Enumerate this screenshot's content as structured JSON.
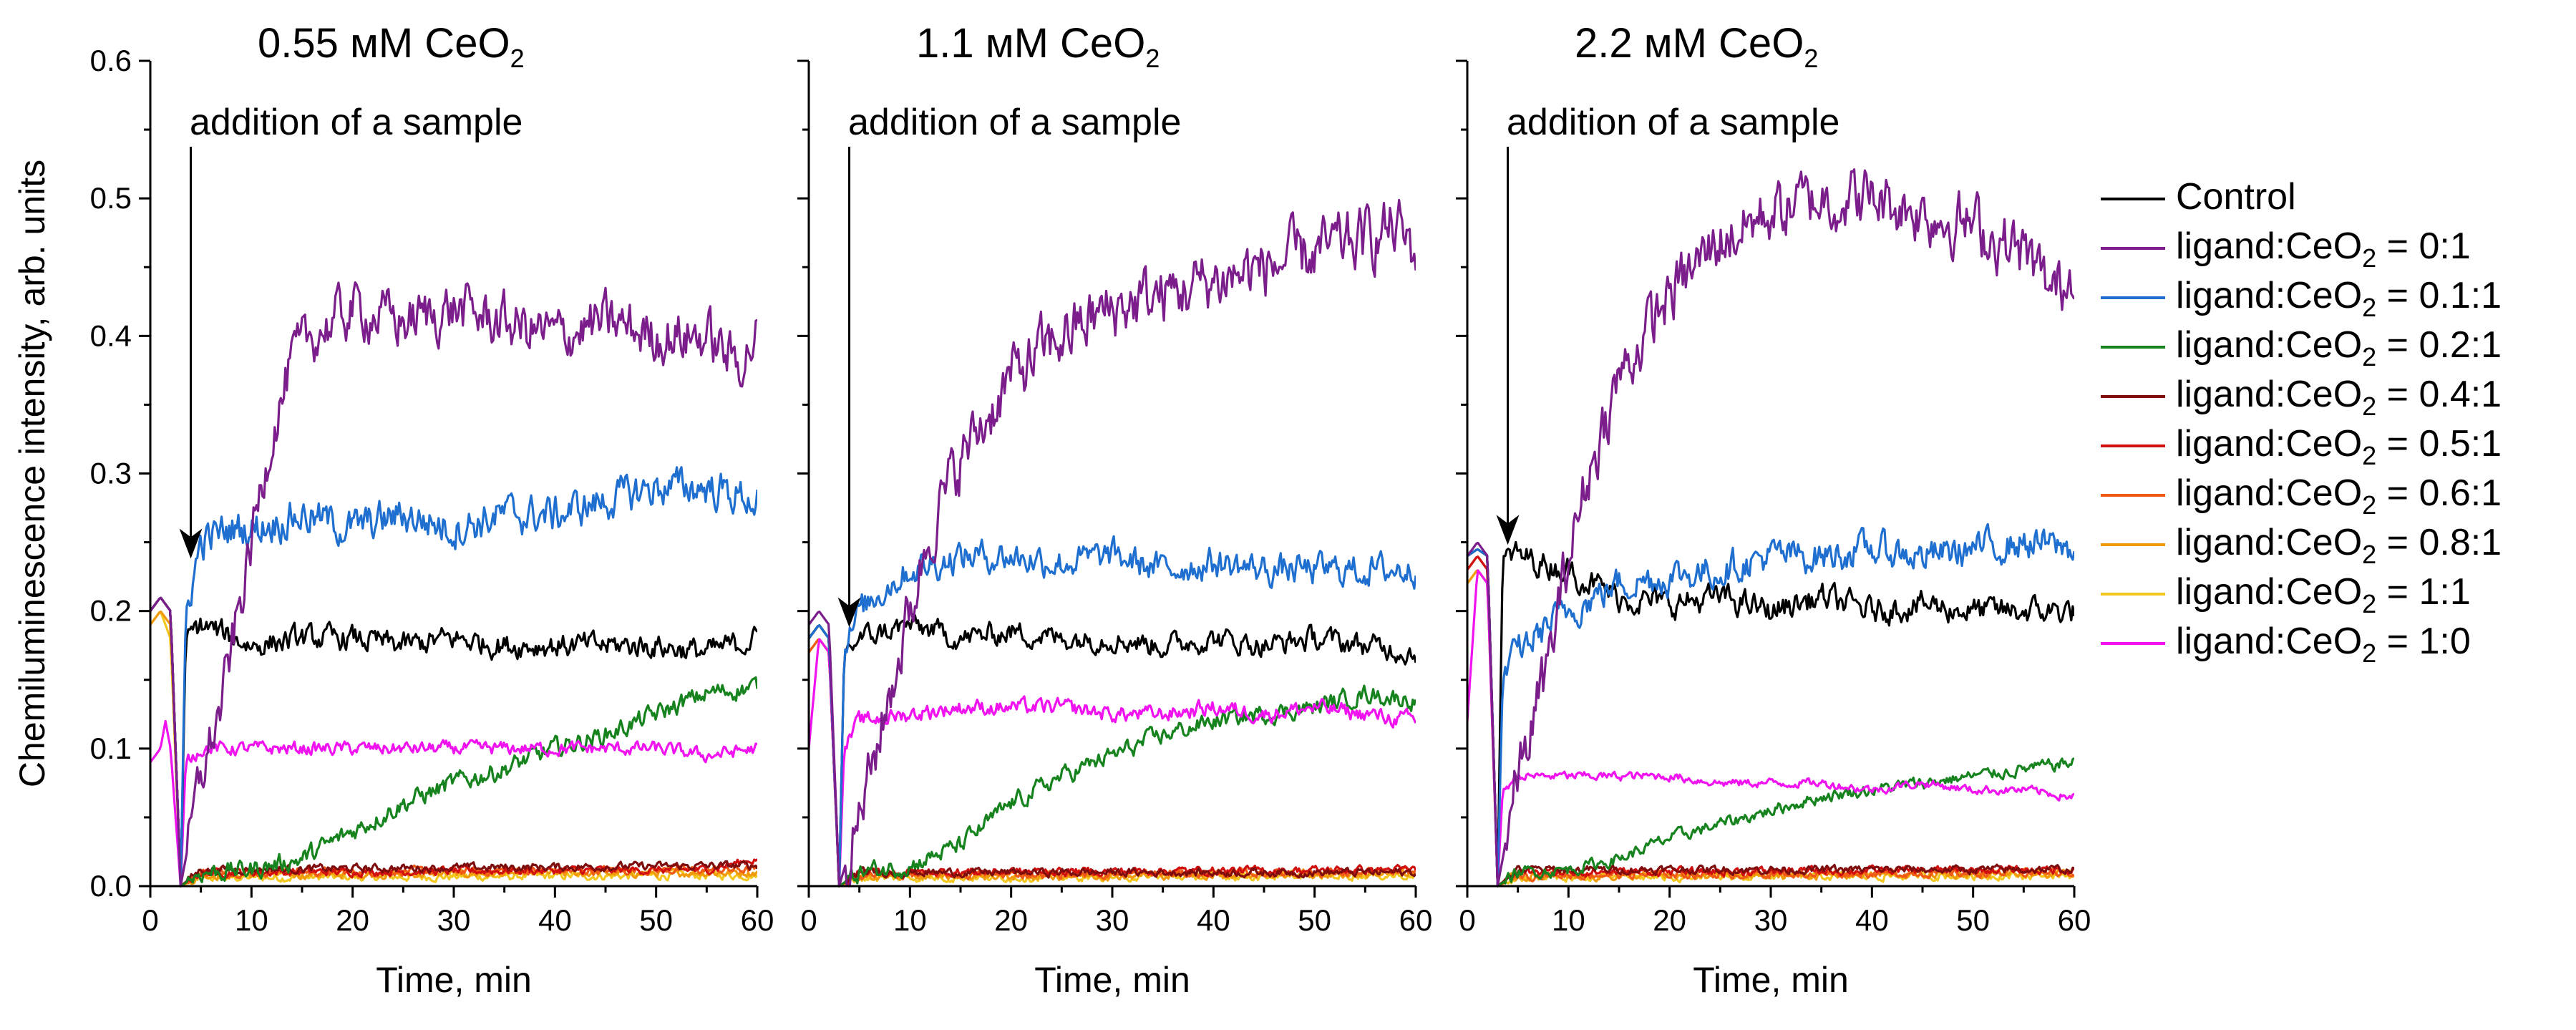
{
  "chart_data": [
    {
      "type": "line",
      "title_main": "0.55 мМ CeO",
      "title_sub": "2",
      "xlabel": "Time, min",
      "ylabel": "Chemiluminescence intensity, arb. units",
      "xlim": [
        0,
        60
      ],
      "ylim": [
        0,
        0.6
      ],
      "xticks": [
        "0",
        "10",
        "20",
        "30",
        "40",
        "50",
        "60"
      ],
      "yticks": [
        "0.0",
        "0.1",
        "0.2",
        "0.3",
        "0.4",
        "0.5",
        "0.6"
      ],
      "annotation": "addition of a sample",
      "arrow": {
        "x": 4,
        "y_tip": 0.235
      },
      "series": [
        {
          "id": "control",
          "x": [
            0,
            1,
            2,
            3,
            3.5,
            5,
            10,
            15,
            20,
            25,
            30,
            35,
            40,
            45,
            50,
            55,
            60
          ],
          "values": [
            0.2,
            0.21,
            0.2,
            0.0,
            0.18,
            0.19,
            0.175,
            0.18,
            0.18,
            0.175,
            0.18,
            0.175,
            0.175,
            0.175,
            0.175,
            0.17,
            0.18
          ]
        },
        {
          "id": "r0_1",
          "x": [
            0,
            1,
            2,
            3,
            5,
            7,
            8,
            10,
            12,
            14,
            16,
            18,
            20,
            25,
            30,
            35,
            40,
            45,
            50,
            55,
            58,
            60
          ],
          "values": [
            0.2,
            0.21,
            0.2,
            0.0,
            0.08,
            0.13,
            0.17,
            0.25,
            0.33,
            0.38,
            0.4,
            0.41,
            0.42,
            0.41,
            0.42,
            0.41,
            0.4,
            0.41,
            0.4,
            0.4,
            0.38,
            0.4
          ]
        },
        {
          "id": "r0_1_1",
          "x": [
            0,
            1,
            2,
            3,
            3.5,
            5,
            8,
            10,
            15,
            20,
            25,
            30,
            35,
            40,
            45,
            50,
            55,
            60
          ],
          "values": [
            0.2,
            0.21,
            0.2,
            0.0,
            0.2,
            0.25,
            0.26,
            0.26,
            0.27,
            0.26,
            0.27,
            0.26,
            0.27,
            0.27,
            0.28,
            0.29,
            0.29,
            0.28
          ]
        },
        {
          "id": "r0_2_1",
          "x": [
            0,
            1,
            2,
            3,
            5,
            10,
            15,
            20,
            25,
            30,
            35,
            40,
            45,
            50,
            55,
            60
          ],
          "values": [
            0.2,
            0.21,
            0.2,
            0.0,
            0.01,
            0.012,
            0.02,
            0.04,
            0.06,
            0.075,
            0.085,
            0.1,
            0.11,
            0.125,
            0.14,
            0.145
          ]
        },
        {
          "id": "r0_4_1",
          "x": [
            0,
            1,
            2,
            3,
            5,
            60
          ],
          "values": [
            0.2,
            0.21,
            0.2,
            0.0,
            0.012,
            0.015
          ]
        },
        {
          "id": "r0_5_1",
          "x": [
            0,
            1,
            2,
            3,
            5,
            55,
            60
          ],
          "values": [
            0.2,
            0.21,
            0.2,
            0.0,
            0.01,
            0.012,
            0.02
          ]
        },
        {
          "id": "r0_6_1",
          "x": [
            0,
            1,
            2,
            3,
            5,
            60
          ],
          "values": [
            0.2,
            0.21,
            0.2,
            0.0,
            0.01,
            0.012
          ]
        },
        {
          "id": "r0_8_1",
          "x": [
            0,
            1,
            2,
            3,
            5,
            60
          ],
          "values": [
            0.19,
            0.2,
            0.19,
            0.0,
            0.008,
            0.01
          ]
        },
        {
          "id": "r1_1",
          "x": [
            0,
            1,
            2,
            3,
            5,
            60
          ],
          "values": [
            0.19,
            0.2,
            0.18,
            0.0,
            0.006,
            0.008
          ]
        },
        {
          "id": "r1_0",
          "x": [
            0,
            1,
            1.5,
            2,
            3,
            3.5,
            5,
            10,
            15,
            20,
            25,
            30,
            35,
            40,
            45,
            50,
            55,
            60
          ],
          "values": [
            0.09,
            0.1,
            0.12,
            0.1,
            0.0,
            0.09,
            0.1,
            0.1,
            0.1,
            0.1,
            0.1,
            0.1,
            0.1,
            0.1,
            0.1,
            0.1,
            0.095,
            0.1
          ]
        }
      ]
    },
    {
      "type": "line",
      "title_main": "1.1 мМ CeO",
      "title_sub": "2",
      "xlabel": "Time, min",
      "xlim": [
        0,
        60
      ],
      "ylim": [
        0,
        0.6
      ],
      "xticks": [
        "0",
        "10",
        "20",
        "30",
        "40",
        "50",
        "60"
      ],
      "annotation": "addition of a sample",
      "arrow": {
        "x": 4,
        "y_tip": 0.185
      },
      "series": [
        {
          "id": "control",
          "x": [
            0,
            1,
            2,
            3,
            3.5,
            5,
            10,
            15,
            20,
            25,
            30,
            35,
            40,
            45,
            50,
            55,
            60
          ],
          "values": [
            0.18,
            0.19,
            0.18,
            0.0,
            0.17,
            0.18,
            0.19,
            0.18,
            0.185,
            0.18,
            0.18,
            0.175,
            0.18,
            0.175,
            0.18,
            0.175,
            0.17
          ]
        },
        {
          "id": "r0_1",
          "x": [
            0,
            1,
            2,
            3,
            5,
            8,
            10,
            12,
            15,
            20,
            25,
            30,
            35,
            40,
            45,
            50,
            55,
            58,
            60
          ],
          "values": [
            0.19,
            0.2,
            0.19,
            0.0,
            0.05,
            0.14,
            0.2,
            0.26,
            0.31,
            0.37,
            0.4,
            0.42,
            0.43,
            0.44,
            0.45,
            0.46,
            0.47,
            0.48,
            0.46
          ]
        },
        {
          "id": "r0_1_1",
          "x": [
            0,
            1,
            2,
            3,
            3.5,
            5,
            8,
            10,
            15,
            20,
            25,
            30,
            35,
            40,
            45,
            50,
            55,
            60
          ],
          "values": [
            0.18,
            0.19,
            0.18,
            0.0,
            0.17,
            0.2,
            0.22,
            0.23,
            0.24,
            0.24,
            0.235,
            0.24,
            0.23,
            0.235,
            0.23,
            0.23,
            0.23,
            0.23
          ]
        },
        {
          "id": "r0_2_1",
          "x": [
            0,
            1,
            2,
            3,
            5,
            10,
            15,
            20,
            25,
            30,
            35,
            40,
            45,
            50,
            55,
            60
          ],
          "values": [
            0.18,
            0.19,
            0.18,
            0.0,
            0.01,
            0.015,
            0.03,
            0.06,
            0.08,
            0.095,
            0.11,
            0.12,
            0.125,
            0.13,
            0.14,
            0.135
          ]
        },
        {
          "id": "r0_4_1",
          "x": [
            0,
            1,
            2,
            3,
            5,
            60
          ],
          "values": [
            0.18,
            0.19,
            0.18,
            0.0,
            0.01,
            0.01
          ]
        },
        {
          "id": "r0_5_1",
          "x": [
            0,
            1,
            2,
            3,
            5,
            60
          ],
          "values": [
            0.18,
            0.19,
            0.18,
            0.0,
            0.01,
            0.012
          ]
        },
        {
          "id": "r0_6_1",
          "x": [
            0,
            1,
            2,
            3,
            5,
            60
          ],
          "values": [
            0.17,
            0.18,
            0.17,
            0.0,
            0.008,
            0.01
          ]
        },
        {
          "id": "r0_8_1",
          "x": [
            0,
            1,
            2,
            3,
            5,
            60
          ],
          "values": [
            0.17,
            0.18,
            0.17,
            0.0,
            0.007,
            0.009
          ]
        },
        {
          "id": "r1_1",
          "x": [
            0,
            1,
            2,
            3,
            5,
            60
          ],
          "values": [
            0.17,
            0.18,
            0.17,
            0.0,
            0.006,
            0.008
          ]
        },
        {
          "id": "r1_0",
          "x": [
            0,
            1,
            2,
            3,
            3.5,
            5,
            10,
            15,
            20,
            25,
            30,
            35,
            40,
            45,
            50,
            55,
            60
          ],
          "values": [
            0.1,
            0.18,
            0.17,
            0.0,
            0.1,
            0.12,
            0.125,
            0.13,
            0.13,
            0.13,
            0.125,
            0.125,
            0.13,
            0.125,
            0.13,
            0.125,
            0.12
          ]
        }
      ]
    },
    {
      "type": "line",
      "title_main": "2.2 мМ CeO",
      "title_sub": "2",
      "xlabel": "Time, min",
      "xlim": [
        0,
        60
      ],
      "ylim": [
        0,
        0.6
      ],
      "xticks": [
        "0",
        "10",
        "20",
        "30",
        "40",
        "50",
        "60"
      ],
      "annotation": "addition of a sample",
      "arrow": {
        "x": 4,
        "y_tip": 0.245
      },
      "series": [
        {
          "id": "control",
          "x": [
            0,
            1,
            2,
            3,
            3.5,
            5,
            10,
            15,
            20,
            25,
            30,
            35,
            40,
            45,
            50,
            55,
            60
          ],
          "values": [
            0.24,
            0.245,
            0.24,
            0.0,
            0.24,
            0.24,
            0.23,
            0.21,
            0.205,
            0.21,
            0.2,
            0.21,
            0.2,
            0.205,
            0.2,
            0.2,
            0.2
          ]
        },
        {
          "id": "r0_1",
          "x": [
            0,
            1,
            2,
            3,
            5,
            8,
            10,
            12,
            15,
            20,
            25,
            30,
            35,
            40,
            45,
            50,
            55,
            58,
            60
          ],
          "values": [
            0.24,
            0.25,
            0.24,
            0.0,
            0.08,
            0.16,
            0.24,
            0.3,
            0.37,
            0.43,
            0.47,
            0.49,
            0.5,
            0.5,
            0.49,
            0.48,
            0.46,
            0.43,
            0.45
          ]
        },
        {
          "id": "r0_1_1",
          "x": [
            0,
            1,
            2,
            3,
            3.5,
            5,
            8,
            10,
            15,
            20,
            25,
            30,
            35,
            40,
            45,
            50,
            55,
            60
          ],
          "values": [
            0.24,
            0.245,
            0.24,
            0.0,
            0.15,
            0.17,
            0.19,
            0.2,
            0.22,
            0.225,
            0.23,
            0.24,
            0.24,
            0.245,
            0.24,
            0.245,
            0.25,
            0.245
          ]
        },
        {
          "id": "r0_2_1",
          "x": [
            0,
            1,
            2,
            3,
            5,
            10,
            15,
            20,
            25,
            30,
            35,
            40,
            45,
            50,
            55,
            60
          ],
          "values": [
            0.24,
            0.245,
            0.24,
            0.0,
            0.01,
            0.012,
            0.02,
            0.035,
            0.045,
            0.055,
            0.065,
            0.07,
            0.075,
            0.08,
            0.085,
            0.09
          ]
        },
        {
          "id": "r0_4_1",
          "x": [
            0,
            1,
            2,
            3,
            5,
            60
          ],
          "values": [
            0.24,
            0.245,
            0.24,
            0.0,
            0.012,
            0.012
          ]
        },
        {
          "id": "r0_5_1",
          "x": [
            0,
            1,
            2,
            3,
            5,
            60
          ],
          "values": [
            0.23,
            0.24,
            0.23,
            0.0,
            0.01,
            0.012
          ]
        },
        {
          "id": "r0_6_1",
          "x": [
            0,
            1,
            2,
            3,
            5,
            60
          ],
          "values": [
            0.23,
            0.24,
            0.23,
            0.0,
            0.008,
            0.01
          ]
        },
        {
          "id": "r0_8_1",
          "x": [
            0,
            1,
            2,
            3,
            5,
            60
          ],
          "values": [
            0.22,
            0.23,
            0.22,
            0.0,
            0.007,
            0.009
          ]
        },
        {
          "id": "r1_1",
          "x": [
            0,
            1,
            2,
            3,
            5,
            60
          ],
          "values": [
            0.22,
            0.23,
            0.22,
            0.0,
            0.006,
            0.008
          ]
        },
        {
          "id": "r1_0",
          "x": [
            0,
            1,
            2,
            3,
            3.5,
            5,
            10,
            15,
            20,
            25,
            30,
            35,
            40,
            45,
            50,
            55,
            60
          ],
          "values": [
            0.12,
            0.23,
            0.22,
            0.0,
            0.07,
            0.08,
            0.08,
            0.08,
            0.08,
            0.075,
            0.075,
            0.075,
            0.07,
            0.075,
            0.07,
            0.07,
            0.065
          ]
        }
      ]
    }
  ],
  "legend": [
    {
      "id": "control",
      "label_main": "Control",
      "label_sub": "",
      "label_tail": "",
      "color": "#000000"
    },
    {
      "id": "r0_1",
      "label_main": "ligand:CeO",
      "label_sub": "2",
      "label_tail": " = 0:1",
      "color": "#7B1E8C"
    },
    {
      "id": "r0_1_1",
      "label_main": "ligand:CeO",
      "label_sub": "2",
      "label_tail": " = 0.1:1",
      "color": "#1E6FD0"
    },
    {
      "id": "r0_2_1",
      "label_main": "ligand:CeO",
      "label_sub": "2",
      "label_tail": " = 0.2:1",
      "color": "#16831E"
    },
    {
      "id": "r0_4_1",
      "label_main": "ligand:CeO",
      "label_sub": "2",
      "label_tail": " = 0.4:1",
      "color": "#7F0D0D"
    },
    {
      "id": "r0_5_1",
      "label_main": "ligand:CeO",
      "label_sub": "2",
      "label_tail": " = 0.5:1",
      "color": "#D20F0F"
    },
    {
      "id": "r0_6_1",
      "label_main": "ligand:CeO",
      "label_sub": "2",
      "label_tail": " = 0.6:1",
      "color": "#F05A14"
    },
    {
      "id": "r0_8_1",
      "label_main": "ligand:CeO",
      "label_sub": "2",
      "label_tail": " = 0.8:1",
      "color": "#F09A0A"
    },
    {
      "id": "r1_1",
      "label_main": "ligand:CeO",
      "label_sub": "2",
      "label_tail": " = 1:1",
      "color": "#F2C81E"
    },
    {
      "id": "r1_0",
      "label_main": "ligand:CeO",
      "label_sub": "2",
      "label_tail": " = 1:0",
      "color": "#F013F0"
    }
  ]
}
